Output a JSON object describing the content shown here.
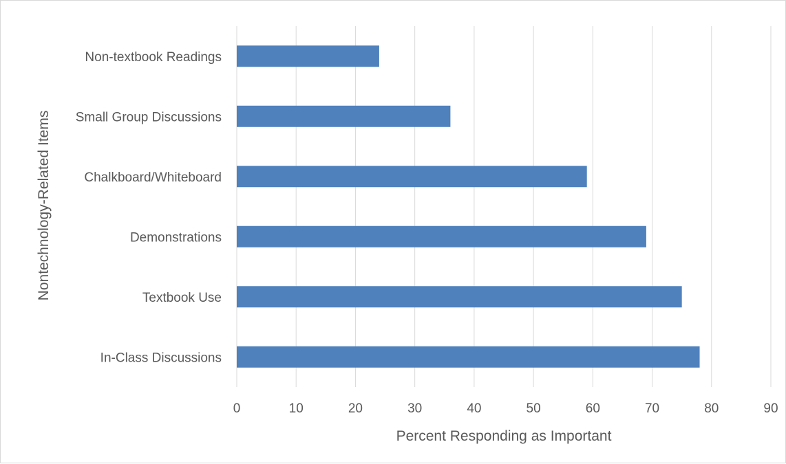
{
  "chart_data": {
    "type": "bar",
    "orientation": "horizontal",
    "categories": [
      "Non-textbook Readings",
      "Small Group Discussions",
      "Chalkboard/Whiteboard",
      "Demonstrations",
      "Textbook Use",
      "In-Class Discussions"
    ],
    "values": [
      24,
      36,
      59,
      69,
      75,
      78
    ],
    "xlabel": "Percent Responding as Important",
    "ylabel": "Nontechnology-Related Items",
    "xlim": [
      0,
      90
    ],
    "xticks": [
      "0",
      "10",
      "20",
      "30",
      "40",
      "50",
      "60",
      "70",
      "80",
      "90"
    ],
    "grid": true,
    "bar_color": "#4f81bd"
  }
}
